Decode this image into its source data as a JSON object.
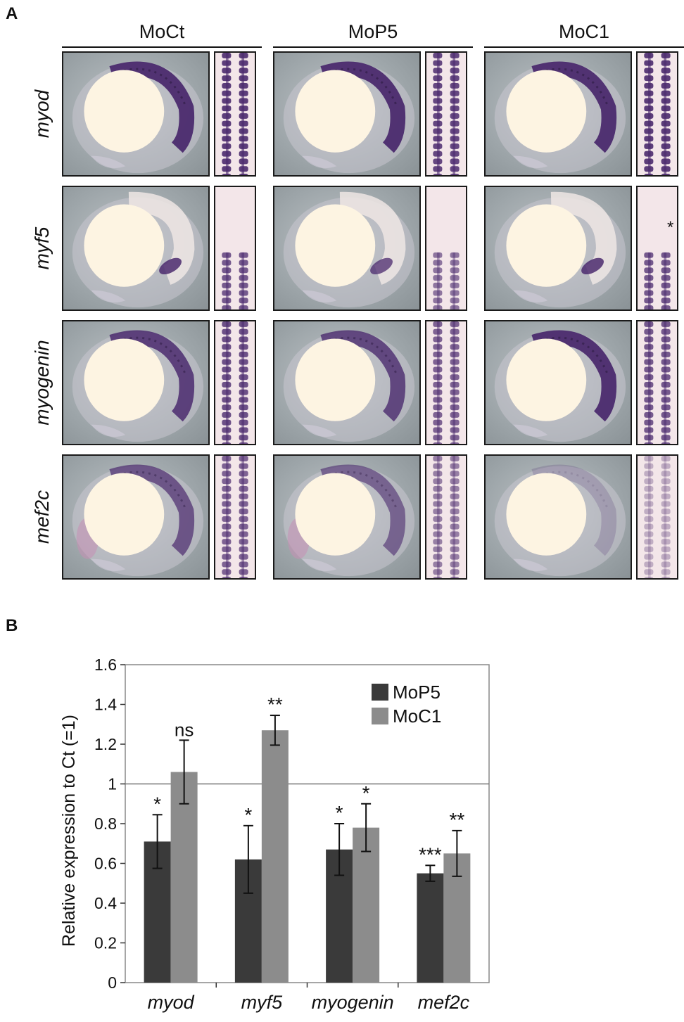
{
  "panel_a": {
    "letter": "A",
    "columns": [
      "MoCt",
      "MoP5",
      "MoC1"
    ],
    "rows": [
      "myod",
      "myf5",
      "myogenin",
      "mef2c"
    ],
    "asterisk": "*"
  },
  "panel_b": {
    "letter": "B"
  },
  "colors": {
    "mop5": "#3a3a3a",
    "moc1": "#8c8c8c",
    "stain": "#4b2a6e",
    "yolk": "#fdf4e2"
  },
  "chart_data": {
    "type": "bar",
    "categories": [
      "myod",
      "myf5",
      "myogenin",
      "mef2c"
    ],
    "series": [
      {
        "name": "MoP5",
        "values": [
          0.71,
          0.62,
          0.67,
          0.55
        ],
        "errors": [
          0.135,
          0.17,
          0.13,
          0.04
        ],
        "significance": [
          "*",
          "*",
          "*",
          "***"
        ]
      },
      {
        "name": "MoC1",
        "values": [
          1.06,
          1.27,
          0.78,
          0.65
        ],
        "errors": [
          0.16,
          0.075,
          0.12,
          0.115
        ],
        "significance": [
          "ns",
          "**",
          "*",
          "**"
        ]
      }
    ],
    "ylabel": "Relative expression to Ct (=1)",
    "ylim": [
      0,
      1.6
    ],
    "yticks": [
      "0",
      "0.2",
      "0.4",
      "0.6",
      "0.8",
      "1",
      "1.2",
      "1.4",
      "1.6"
    ],
    "reference_line": 1,
    "legend": "top-right"
  }
}
